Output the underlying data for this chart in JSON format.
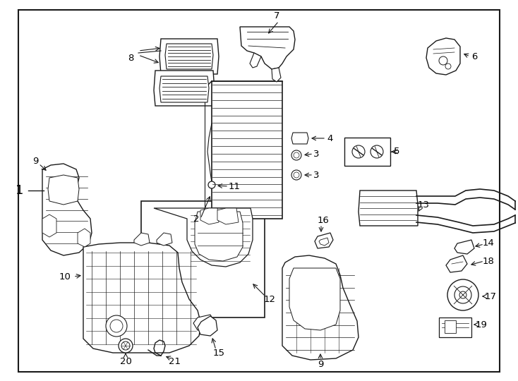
{
  "background_color": "#ffffff",
  "border_color": "#1a1a1a",
  "line_color": "#1a1a1a",
  "figure_width": 7.34,
  "figure_height": 5.4,
  "dpi": 100,
  "border": [
    0.035,
    0.025,
    0.965,
    0.975
  ]
}
